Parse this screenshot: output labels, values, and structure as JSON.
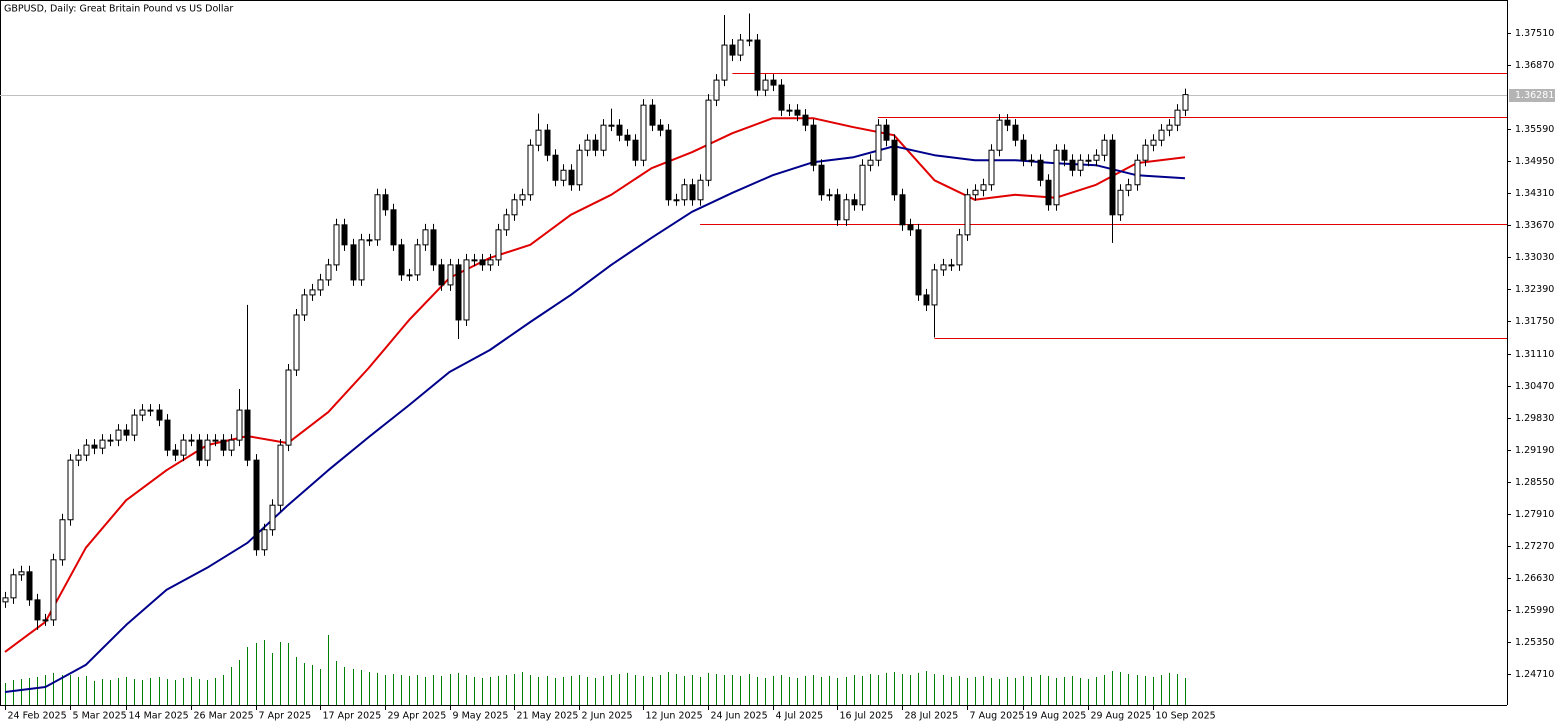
{
  "chart_data": {
    "type": "candlestick",
    "title": "GBPUSD, Daily:  Great Britain Pound vs US Dollar",
    "categories": [
      "24 Feb 2025",
      null,
      null,
      null,
      null,
      null,
      null,
      null,
      "5 Mar 2025",
      null,
      null,
      null,
      null,
      null,
      null,
      "14 Mar 2025",
      null,
      null,
      null,
      null,
      null,
      null,
      null,
      "26 Mar 2025",
      null,
      null,
      null,
      null,
      null,
      null,
      null,
      "7 Apr 2025",
      null,
      null,
      null,
      null,
      null,
      null,
      null,
      "17 Apr 2025",
      null,
      null,
      null,
      null,
      null,
      null,
      null,
      "29 Apr 2025",
      null,
      null,
      null,
      null,
      null,
      null,
      null,
      "9 May 2025",
      null,
      null,
      null,
      null,
      null,
      null,
      null,
      "21 May 2025",
      null,
      null,
      null,
      null,
      null,
      null,
      null,
      "2 Jun 2025",
      null,
      null,
      null,
      null,
      null,
      null,
      null,
      "12 Jun 2025",
      null,
      null,
      null,
      null,
      null,
      null,
      null,
      "24 Jun 2025",
      null,
      null,
      null,
      null,
      null,
      null,
      null,
      "4 Jul 2025",
      null,
      null,
      null,
      null,
      null,
      null,
      null,
      "16 Jul 2025",
      null,
      null,
      null,
      null,
      null,
      null,
      null,
      "28 Jul 2025",
      null,
      null,
      null,
      null,
      null,
      null,
      null,
      "7 Aug 2025",
      null,
      null,
      null,
      null,
      null,
      null,
      "19 Aug 2025",
      null,
      null,
      null,
      null,
      null,
      null,
      null,
      "29 Aug 2025",
      null,
      null,
      null,
      null,
      null,
      null,
      null,
      "10 Sep 2025",
      null,
      null,
      null,
      null
    ],
    "open": [
      1.2615,
      1.2623,
      1.2669,
      1.2675,
      1.2619,
      1.2579,
      1.2579,
      1.2699,
      1.2779,
      1.2898,
      1.2908,
      1.2928,
      1.2922,
      1.2938,
      1.2938,
      1.2958,
      1.2948,
      1.2988,
      1.2998,
      1.2998,
      1.2978,
      1.2918,
      1.2908,
      1.2938,
      1.2938,
      1.2898,
      1.2938,
      1.2938,
      1.2918,
      1.2938,
      1.2998,
      1.2898,
      1.2719,
      1.2759,
      1.2808,
      1.2928,
      1.3078,
      1.3188,
      1.3228,
      1.3238,
      1.3258,
      1.3288,
      1.3368,
      1.3328,
      1.3258,
      1.3338,
      1.3338,
      1.3428,
      1.3398,
      1.3328,
      1.3268,
      1.3268,
      1.3328,
      1.3358,
      1.3288,
      1.3248,
      1.3288,
      1.3178,
      1.3298,
      1.3298,
      1.3288,
      1.3298,
      1.3358,
      1.3388,
      1.3418,
      1.3428,
      1.3527,
      1.3557,
      1.3507,
      1.3457,
      1.3477,
      1.3448,
      1.3517,
      1.3537,
      1.3517,
      1.3567,
      1.3567,
      1.3547,
      1.3537,
      1.3497,
      1.3607,
      1.3567,
      1.3557,
      1.3418,
      1.3418,
      1.3448,
      1.3418,
      1.3457,
      1.3617,
      1.3657,
      1.3727,
      1.3707,
      1.3737,
      1.3737,
      1.3637,
      1.3657,
      1.3647,
      1.3597,
      1.3597,
      1.3587,
      1.3567,
      1.3487,
      1.3428,
      1.3428,
      1.3378,
      1.3418,
      1.3408,
      1.3487,
      1.3497,
      1.3567,
      1.3537,
      1.3428,
      1.3368,
      1.3358,
      1.3228,
      1.3208,
      1.3278,
      1.3288,
      1.3288,
      1.3348,
      1.3428,
      1.3437,
      1.3448,
      1.3517,
      1.3577,
      1.3567,
      1.3537,
      1.3497,
      1.3497,
      1.3457,
      1.3408,
      1.3517,
      1.3497,
      1.3477,
      1.3497,
      1.3497,
      1.3507,
      1.3537,
      1.3388,
      1.3437,
      1.3448,
      1.3497,
      1.3527,
      1.3537,
      1.3557,
      1.3567,
      1.3597
    ],
    "high": [
      1.2635,
      1.2681,
      1.2687,
      1.2687,
      1.2631,
      1.2591,
      1.2711,
      1.2791,
      1.291,
      1.292,
      1.294,
      1.294,
      1.295,
      1.295,
      1.297,
      1.297,
      1.3,
      1.301,
      1.301,
      1.301,
      1.299,
      1.293,
      1.295,
      1.295,
      1.295,
      1.295,
      1.295,
      1.295,
      1.295,
      1.304,
      1.3208,
      1.291,
      1.2771,
      1.282,
      1.294,
      1.309,
      1.32,
      1.324,
      1.325,
      1.327,
      1.33,
      1.338,
      1.338,
      1.334,
      1.335,
      1.335,
      1.344,
      1.344,
      1.341,
      1.334,
      1.328,
      1.334,
      1.337,
      1.337,
      1.33,
      1.33,
      1.33,
      1.331,
      1.331,
      1.331,
      1.331,
      1.337,
      1.34,
      1.343,
      1.344,
      1.3539,
      1.359,
      1.3569,
      1.3519,
      1.3489,
      1.3489,
      1.3529,
      1.3549,
      1.3549,
      1.3579,
      1.36,
      1.3579,
      1.3559,
      1.3549,
      1.3619,
      1.3619,
      1.3579,
      1.3569,
      1.343,
      1.346,
      1.346,
      1.3469,
      1.3629,
      1.3669,
      1.3787,
      1.3739,
      1.3749,
      1.379,
      1.3749,
      1.3669,
      1.3669,
      1.3659,
      1.3609,
      1.3609,
      1.3599,
      1.3579,
      1.3499,
      1.344,
      1.344,
      1.343,
      1.343,
      1.3499,
      1.3509,
      1.3579,
      1.3579,
      1.3549,
      1.344,
      1.338,
      1.337,
      1.324,
      1.329,
      1.33,
      1.33,
      1.336,
      1.344,
      1.3449,
      1.346,
      1.3529,
      1.3589,
      1.3589,
      1.3579,
      1.3549,
      1.3509,
      1.3509,
      1.3469,
      1.3529,
      1.3529,
      1.3509,
      1.3509,
      1.3509,
      1.3519,
      1.3549,
      1.3549,
      1.3449,
      1.346,
      1.3509,
      1.3539,
      1.3549,
      1.3569,
      1.3579,
      1.3609,
      1.364
    ],
    "low": [
      1.2603,
      1.2611,
      1.2657,
      1.2607,
      1.2559,
      1.2567,
      1.2567,
      1.2687,
      1.2767,
      1.2886,
      1.2896,
      1.291,
      1.291,
      1.2926,
      1.2926,
      1.2936,
      1.2936,
      1.2976,
      1.2986,
      1.2966,
      1.2906,
      1.2896,
      1.2896,
      1.2926,
      1.2886,
      1.2886,
      1.2926,
      1.2906,
      1.2906,
      1.2926,
      1.2886,
      1.2707,
      1.2707,
      1.2747,
      1.2796,
      1.2916,
      1.3066,
      1.3176,
      1.3216,
      1.3226,
      1.3246,
      1.3276,
      1.3316,
      1.3246,
      1.3246,
      1.3326,
      1.3326,
      1.3386,
      1.3316,
      1.3256,
      1.3256,
      1.3256,
      1.3316,
      1.3276,
      1.3236,
      1.3236,
      1.314,
      1.3166,
      1.3286,
      1.3276,
      1.3276,
      1.3286,
      1.3346,
      1.3376,
      1.3406,
      1.3416,
      1.3515,
      1.3495,
      1.3445,
      1.3445,
      1.3436,
      1.3436,
      1.3505,
      1.3505,
      1.3505,
      1.3555,
      1.3535,
      1.3525,
      1.3485,
      1.3485,
      1.3555,
      1.3545,
      1.3406,
      1.3406,
      1.3406,
      1.3406,
      1.3406,
      1.3445,
      1.3605,
      1.3645,
      1.3695,
      1.3695,
      1.3725,
      1.3625,
      1.3625,
      1.3635,
      1.3585,
      1.3585,
      1.3575,
      1.3555,
      1.3475,
      1.3416,
      1.3416,
      1.3366,
      1.3366,
      1.3396,
      1.3396,
      1.3475,
      1.3485,
      1.3525,
      1.3416,
      1.3356,
      1.3346,
      1.3216,
      1.3196,
      1.3143,
      1.3266,
      1.3276,
      1.3276,
      1.3336,
      1.3416,
      1.3425,
      1.3436,
      1.3505,
      1.3555,
      1.3525,
      1.3485,
      1.3485,
      1.3445,
      1.3396,
      1.3396,
      1.3485,
      1.3465,
      1.3465,
      1.3485,
      1.3485,
      1.3495,
      1.3332,
      1.3376,
      1.3425,
      1.3436,
      1.3485,
      1.3515,
      1.3525,
      1.3545,
      1.3555,
      1.3585
    ],
    "close": [
      1.2623,
      1.2669,
      1.2675,
      1.2619,
      1.2579,
      1.2579,
      1.2699,
      1.2779,
      1.2898,
      1.2908,
      1.2928,
      1.2922,
      1.2938,
      1.2938,
      1.2958,
      1.2948,
      1.2988,
      1.2998,
      1.2998,
      1.2978,
      1.2918,
      1.2908,
      1.2938,
      1.2938,
      1.2898,
      1.2938,
      1.2938,
      1.2918,
      1.2938,
      1.2998,
      1.2898,
      1.2719,
      1.2759,
      1.2808,
      1.2928,
      1.3078,
      1.3188,
      1.3228,
      1.3238,
      1.3258,
      1.3288,
      1.3368,
      1.3328,
      1.3258,
      1.3338,
      1.3338,
      1.3428,
      1.3398,
      1.3328,
      1.3268,
      1.3268,
      1.3328,
      1.3358,
      1.3288,
      1.3248,
      1.3288,
      1.3178,
      1.3298,
      1.3298,
      1.3288,
      1.3298,
      1.3358,
      1.3388,
      1.3418,
      1.3428,
      1.3527,
      1.3557,
      1.3507,
      1.3457,
      1.3477,
      1.3448,
      1.3517,
      1.3537,
      1.3517,
      1.3567,
      1.3567,
      1.3547,
      1.3537,
      1.3497,
      1.3607,
      1.3567,
      1.3557,
      1.3418,
      1.3418,
      1.3448,
      1.3418,
      1.3457,
      1.3617,
      1.3657,
      1.3727,
      1.3707,
      1.3737,
      1.3737,
      1.3637,
      1.3657,
      1.3647,
      1.3597,
      1.3597,
      1.3587,
      1.3567,
      1.3487,
      1.3428,
      1.3428,
      1.3378,
      1.3418,
      1.3408,
      1.3487,
      1.3497,
      1.3567,
      1.3537,
      1.3428,
      1.3368,
      1.3358,
      1.3228,
      1.3208,
      1.3278,
      1.3288,
      1.3288,
      1.3348,
      1.3428,
      1.3437,
      1.3448,
      1.3517,
      1.3577,
      1.3567,
      1.3537,
      1.3497,
      1.3497,
      1.3457,
      1.3408,
      1.3517,
      1.3497,
      1.3477,
      1.3497,
      1.3497,
      1.3507,
      1.3537,
      1.3388,
      1.3437,
      1.3448,
      1.3497,
      1.3527,
      1.3537,
      1.3557,
      1.3567,
      1.3597,
      1.3628
    ],
    "up_color": "#ffffff",
    "down_color": "#000000",
    "ylim": [
      1.2409,
      1.3817
    ],
    "yticks": [
      {
        "value": 1.3751,
        "label": "1.37510"
      },
      {
        "value": 1.3687,
        "label": "1.36870"
      },
      {
        "value": 1.3559,
        "label": "1.35590"
      },
      {
        "value": 1.3495,
        "label": "1.34950"
      },
      {
        "value": 1.3431,
        "label": "1.34310"
      },
      {
        "value": 1.3367,
        "label": "1.33670"
      },
      {
        "value": 1.3303,
        "label": "1.33030"
      },
      {
        "value": 1.3239,
        "label": "1.32390"
      },
      {
        "value": 1.3175,
        "label": "1.31750"
      },
      {
        "value": 1.3111,
        "label": "1.31110"
      },
      {
        "value": 1.3047,
        "label": "1.30470"
      },
      {
        "value": 1.2983,
        "label": "1.29830"
      },
      {
        "value": 1.2919,
        "label": "1.29190"
      },
      {
        "value": 1.2855,
        "label": "1.28550"
      },
      {
        "value": 1.2791,
        "label": "1.27910"
      },
      {
        "value": 1.2727,
        "label": "1.27270"
      },
      {
        "value": 1.2663,
        "label": "1.26630"
      },
      {
        "value": 1.2599,
        "label": "1.25990"
      },
      {
        "value": 1.2535,
        "label": "1.25350"
      },
      {
        "value": 1.2471,
        "label": "1.24710"
      }
    ],
    "last_price": 1.36281,
    "indicators": [
      {
        "color": "#e00000",
        "x": [
          0,
          5,
          10,
          15,
          20,
          25,
          30,
          35,
          40,
          45,
          50,
          55,
          60,
          65,
          70,
          75,
          80,
          85,
          90,
          95,
          100,
          105,
          110,
          115,
          120,
          125,
          130,
          135,
          140,
          146
        ],
        "values": [
          1.2515,
          1.2575,
          1.2723,
          1.2818,
          1.2878,
          1.2928,
          1.2946,
          1.2932,
          1.2994,
          1.3082,
          1.3178,
          1.3262,
          1.3302,
          1.3328,
          1.3388,
          1.3428,
          1.3481,
          1.3513,
          1.3551,
          1.3581,
          1.3581,
          1.3563,
          1.3547,
          1.3457,
          1.3418,
          1.3428,
          1.3422,
          1.3448,
          1.3491,
          1.3503
        ]
      },
      {
        "color": "#00008b",
        "x": [
          0,
          5,
          10,
          15,
          20,
          25,
          30,
          35,
          40,
          45,
          50,
          55,
          60,
          65,
          70,
          75,
          80,
          85,
          90,
          95,
          100,
          105,
          110,
          115,
          120,
          125,
          130,
          135,
          140,
          146
        ],
        "values": [
          1.2435,
          1.2445,
          1.2489,
          1.2569,
          1.2639,
          1.2683,
          1.2733,
          1.2808,
          1.2878,
          1.2944,
          1.3008,
          1.3074,
          1.3118,
          1.3174,
          1.3228,
          1.3288,
          1.3342,
          1.3394,
          1.3432,
          1.3467,
          1.3493,
          1.3503,
          1.3525,
          1.3507,
          1.3497,
          1.3497,
          1.3491,
          1.3487,
          1.3467,
          1.3461
        ]
      }
    ],
    "levels": [
      {
        "value": 1.3671,
        "start": 90,
        "color": "#e00000"
      },
      {
        "value": 1.3583,
        "start": 108,
        "color": "#e00000"
      },
      {
        "value": 1.337,
        "start": 86,
        "color": "#e00000"
      },
      {
        "value": 1.3142,
        "start": 115,
        "color": "#e00000"
      }
    ],
    "volume": {
      "color": "#008000",
      "ylim": [
        0,
        100
      ],
      "values": [
        22,
        25,
        26,
        27,
        28,
        30,
        32,
        30,
        30,
        28,
        29,
        24,
        26,
        25,
        27,
        28,
        26,
        25,
        27,
        28,
        26,
        25,
        27,
        28,
        26,
        25,
        27,
        30,
        38,
        45,
        58,
        62,
        65,
        52,
        63,
        62,
        48,
        42,
        40,
        36,
        70,
        44,
        38,
        36,
        35,
        33,
        32,
        30,
        31,
        30,
        29,
        30,
        28,
        30,
        29,
        31,
        32,
        30,
        28,
        27,
        28,
        29,
        30,
        31,
        33,
        30,
        28,
        29,
        27,
        28,
        29,
        30,
        28,
        27,
        29,
        30,
        31,
        32,
        30,
        29,
        28,
        30,
        33,
        31,
        29,
        30,
        28,
        32,
        31,
        30,
        30,
        29,
        31,
        28,
        27,
        29,
        30,
        28,
        27,
        29,
        30,
        28,
        29,
        27,
        28,
        30,
        29,
        31,
        30,
        32,
        33,
        31,
        30,
        32,
        34,
        31,
        30,
        28,
        29,
        27,
        28,
        29,
        27,
        26,
        28,
        27,
        29,
        28,
        30,
        29,
        27,
        28,
        29,
        27,
        26,
        28,
        30,
        34,
        33,
        31,
        30,
        29,
        28,
        30,
        32,
        31,
        27
      ]
    }
  }
}
